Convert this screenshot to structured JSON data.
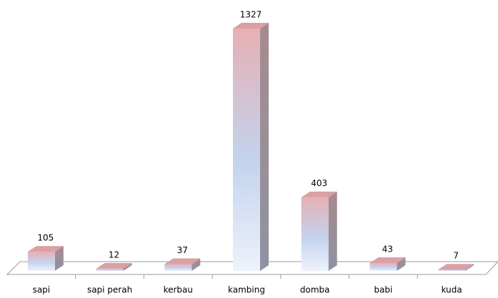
{
  "chart_data": {
    "type": "bar3d",
    "categories": [
      "sapi",
      "sapi perah",
      "kerbau",
      "kambing",
      "domba",
      "babi",
      "kuda"
    ],
    "values": [
      105,
      12,
      37,
      1327,
      403,
      43,
      7
    ]
  }
}
